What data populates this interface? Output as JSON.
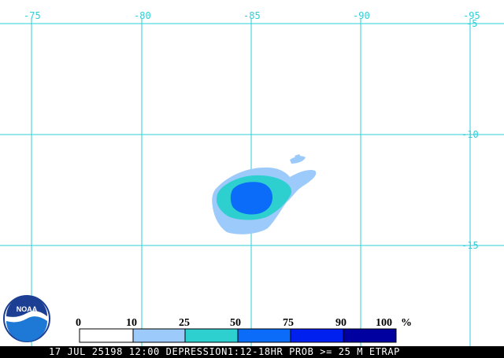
{
  "map": {
    "longitude_labels": [
      "-75",
      "-80",
      "-85",
      "-90",
      "-95"
    ],
    "latitude_labels": [
      "-5",
      "-10",
      "-15"
    ],
    "grid_color": "#2ecfd8"
  },
  "logo": {
    "text": "NOAA"
  },
  "legend": {
    "values": [
      "0",
      "10",
      "25",
      "50",
      "75",
      "90",
      "100"
    ],
    "unit": "%",
    "colors": [
      "#ffffff",
      "#9ccafa",
      "#2ecfcf",
      "#0a6cf8",
      "#0020f0",
      "#0000a0"
    ]
  },
  "footer": {
    "caption": "17 JUL 25198 12:00 DEPRESSION1:12-18HR PROB >= 25 M ETRAP"
  }
}
